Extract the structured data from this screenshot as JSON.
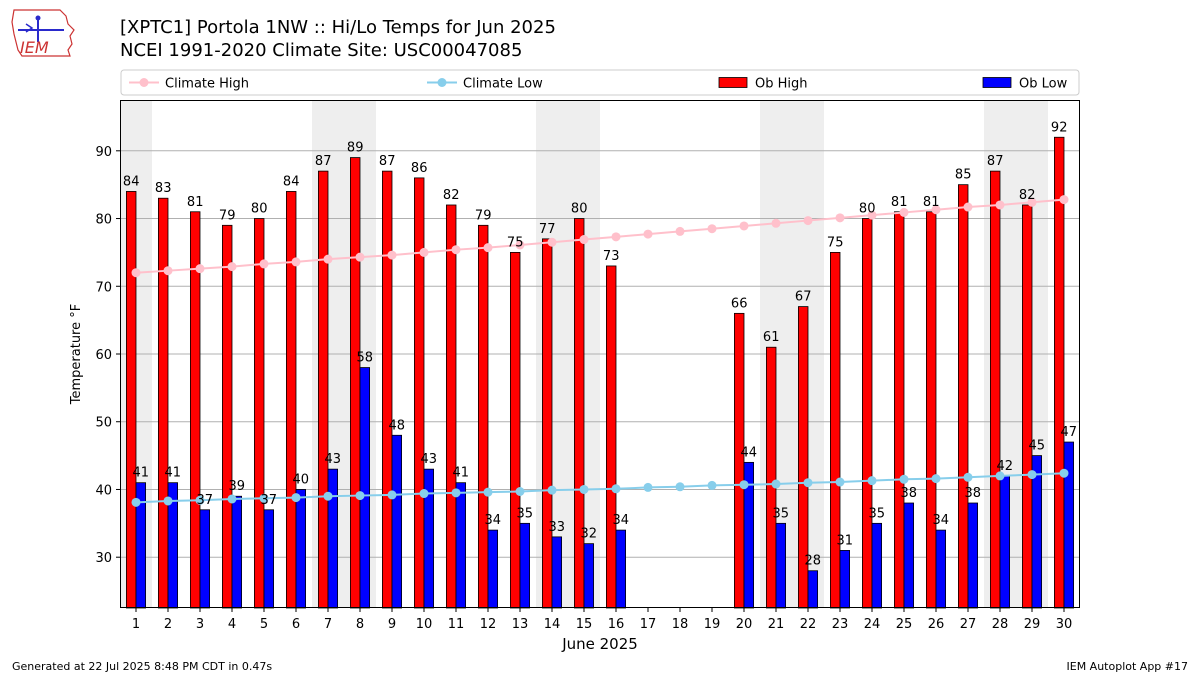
{
  "header": {
    "title_line1": "[XPTC1] Portola 1NW :: Hi/Lo Temps for Jun 2025",
    "title_line2": "NCEI 1991-2020 Climate Site: USC00047085"
  },
  "logo": {
    "text": "IEM",
    "icon": "iem-logo"
  },
  "footer": {
    "left": "Generated at 22 Jul 2025 8:48 PM CDT in 0.47s",
    "right": "IEM Autoplot App #17"
  },
  "colors": {
    "ob_high": "#ff0000",
    "ob_low": "#0000ff",
    "climate_high": "#ffc0cb",
    "climate_low": "#87ceeb",
    "weekend_band": "#eeeeee",
    "grid": "#b0b0b0"
  },
  "chart_data": {
    "type": "bar",
    "title": "[XPTC1] Portola 1NW :: Hi/Lo Temps for Jun 2025",
    "subtitle": "NCEI 1991-2020 Climate Site: USC00047085",
    "xlabel": "June 2025",
    "ylabel": "Temperature °F",
    "ylim": [
      22.5,
      97.5
    ],
    "yticks": [
      30,
      40,
      50,
      60,
      70,
      80,
      90
    ],
    "grid": "horizontal",
    "legend_position": "top",
    "categories": [
      "1",
      "2",
      "3",
      "4",
      "5",
      "6",
      "7",
      "8",
      "9",
      "10",
      "11",
      "12",
      "13",
      "14",
      "15",
      "16",
      "17",
      "18",
      "19",
      "20",
      "21",
      "22",
      "23",
      "24",
      "25",
      "26",
      "27",
      "28",
      "29",
      "30"
    ],
    "weekend_days": [
      1,
      7,
      8,
      14,
      15,
      21,
      22,
      28,
      29
    ],
    "series": [
      {
        "name": "Ob High",
        "kind": "bar",
        "values": [
          84,
          83,
          81,
          79,
          80,
          84,
          87,
          89,
          87,
          86,
          82,
          79,
          75,
          77,
          80,
          73,
          null,
          null,
          null,
          66,
          61,
          67,
          75,
          80,
          81,
          81,
          85,
          87,
          82,
          92
        ]
      },
      {
        "name": "Ob Low",
        "kind": "bar",
        "values": [
          41,
          41,
          37,
          39,
          37,
          40,
          43,
          58,
          48,
          43,
          41,
          34,
          35,
          33,
          32,
          34,
          null,
          null,
          null,
          44,
          35,
          28,
          31,
          35,
          38,
          34,
          38,
          42,
          45,
          47
        ]
      },
      {
        "name": "Climate High",
        "kind": "line",
        "values": [
          72.0,
          72.3,
          72.6,
          72.9,
          73.3,
          73.6,
          74.0,
          74.3,
          74.6,
          75.0,
          75.4,
          75.7,
          76.1,
          76.5,
          76.9,
          77.3,
          77.7,
          78.1,
          78.5,
          78.9,
          79.3,
          79.7,
          80.1,
          80.5,
          80.9,
          81.3,
          81.7,
          82.0,
          82.4,
          82.8
        ]
      },
      {
        "name": "Climate Low",
        "kind": "line",
        "values": [
          38.1,
          38.3,
          38.4,
          38.6,
          38.7,
          38.8,
          39.0,
          39.1,
          39.2,
          39.4,
          39.5,
          39.6,
          39.7,
          39.9,
          40.0,
          40.1,
          40.3,
          40.4,
          40.6,
          40.7,
          40.8,
          41.0,
          41.1,
          41.3,
          41.5,
          41.6,
          41.8,
          42.0,
          42.2,
          42.4
        ]
      }
    ],
    "legend": [
      {
        "name": "Climate High",
        "marker": "line"
      },
      {
        "name": "Climate Low",
        "marker": "line"
      },
      {
        "name": "Ob High",
        "marker": "box"
      },
      {
        "name": "Ob Low",
        "marker": "box"
      }
    ]
  }
}
